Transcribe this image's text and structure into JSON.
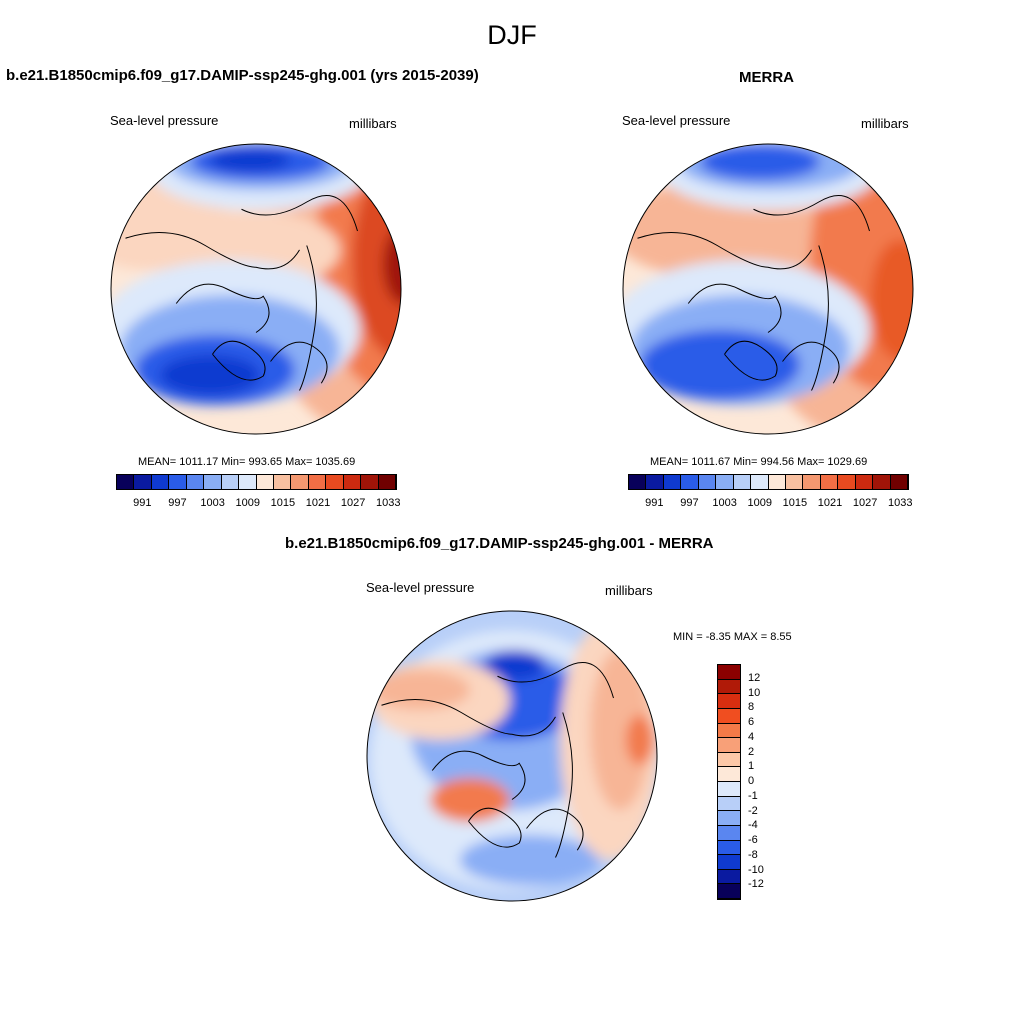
{
  "page_title": "DJF",
  "panels": [
    {
      "title": "b.e21.B1850cmip6.f09_g17.DAMIP-ssp245-ghg.001 (yrs 2015-2039)",
      "variable_label": "Sea-level pressure",
      "units_label": "millibars",
      "stats_text": "MEAN= 1011.17  Min= 993.65  Max= 1035.69"
    },
    {
      "title": "MERRA",
      "variable_label": "Sea-level pressure",
      "units_label": "millibars",
      "stats_text": "MEAN= 1011.67  Min= 994.56  Max= 1029.69"
    },
    {
      "title": "b.e21.B1850cmip6.f09_g17.DAMIP-ssp245-ghg.001 - MERRA",
      "variable_label": "Sea-level pressure",
      "units_label": "millibars",
      "stats_text": "MIN =  -8.35 MAX =   8.55"
    }
  ],
  "colorbar_abs": {
    "colors": [
      "#08005a",
      "#0a1aa0",
      "#0f3ad0",
      "#2a5ce8",
      "#5a86f0",
      "#8aaef5",
      "#b8cff8",
      "#dde9fb",
      "#fde8d8",
      "#f8c0a0",
      "#f49870",
      "#f26e45",
      "#e84a20",
      "#cc2a10",
      "#a01408",
      "#700000"
    ],
    "tick_labels": [
      "991",
      "997",
      "1003",
      "1009",
      "1015",
      "1021",
      "1027",
      "1033"
    ]
  },
  "colorbar_diff": {
    "colors": [
      "#8b0000",
      "#b01a08",
      "#d82e10",
      "#f04e20",
      "#f47a48",
      "#f8a078",
      "#fcc8a8",
      "#fde8d8",
      "#dde9fb",
      "#b8cff8",
      "#8aaef5",
      "#5a86f0",
      "#2a5ce8",
      "#0f3ad0",
      "#0a1aa0",
      "#08005a"
    ],
    "tick_labels": [
      "12",
      "10",
      "8",
      "6",
      "4",
      "2",
      "1",
      "0",
      "-1",
      "-2",
      "-4",
      "-6",
      "-8",
      "-10",
      "-12"
    ]
  },
  "map_fields": {
    "panel1": [
      {
        "c": "#f7b596",
        "blobs": [
          [
            380,
            250,
            130,
            190
          ]
        ]
      },
      {
        "c": "#f27a4e",
        "blobs": [
          [
            395,
            255,
            80,
            140
          ]
        ]
      },
      {
        "c": "#dc4a24",
        "blobs": [
          [
            402,
            260,
            50,
            100
          ]
        ]
      },
      {
        "c": "#a01408",
        "blobs": [
          [
            405,
            265,
            22,
            40
          ]
        ]
      },
      {
        "c": "#fbd6c0",
        "blobs": [
          [
            150,
            220,
            80,
            50
          ],
          [
            250,
            250,
            90,
            40
          ]
        ]
      },
      {
        "c": "#dde9fb",
        "blobs": [
          [
            260,
            170,
            110,
            40
          ],
          [
            230,
            330,
            130,
            70
          ]
        ]
      },
      {
        "c": "#8aaef5",
        "blobs": [
          [
            260,
            165,
            90,
            25
          ],
          [
            230,
            350,
            110,
            55
          ]
        ]
      },
      {
        "c": "#2a5ce8",
        "blobs": [
          [
            260,
            162,
            70,
            18
          ],
          [
            215,
            370,
            80,
            35
          ]
        ]
      },
      {
        "c": "#0f3ad0",
        "blobs": [
          [
            250,
            160,
            40,
            12
          ],
          [
            210,
            375,
            50,
            20
          ]
        ]
      }
    ],
    "panel2": [
      {
        "c": "#f7b596",
        "blobs": [
          [
            860,
            250,
            120,
            190
          ],
          [
            730,
            230,
            120,
            50
          ]
        ]
      },
      {
        "c": "#f27a4e",
        "blobs": [
          [
            880,
            260,
            70,
            130
          ]
        ]
      },
      {
        "c": "#e85a28",
        "blobs": [
          [
            900,
            300,
            30,
            60
          ]
        ]
      },
      {
        "c": "#dde9fb",
        "blobs": [
          [
            770,
            170,
            110,
            40
          ],
          [
            740,
            330,
            130,
            70
          ]
        ]
      },
      {
        "c": "#8aaef5",
        "blobs": [
          [
            770,
            165,
            90,
            25
          ],
          [
            740,
            350,
            110,
            55
          ]
        ]
      },
      {
        "c": "#2a5ce8",
        "blobs": [
          [
            760,
            162,
            60,
            18
          ],
          [
            720,
            365,
            80,
            35
          ]
        ]
      }
    ],
    "panel3": [
      {
        "c": "#dde9fb",
        "blobs": [
          [
            510,
            760,
            140,
            130
          ]
        ]
      },
      {
        "c": "#8aaef5",
        "blobs": [
          [
            510,
            730,
            100,
            80
          ],
          [
            530,
            860,
            70,
            25
          ]
        ]
      },
      {
        "c": "#2a5ce8",
        "blobs": [
          [
            510,
            700,
            70,
            40
          ]
        ]
      },
      {
        "c": "#0f3ad0",
        "blobs": [
          [
            515,
            665,
            30,
            15
          ]
        ]
      },
      {
        "c": "#fbd6c0",
        "blobs": [
          [
            440,
            700,
            70,
            40
          ],
          [
            610,
            740,
            50,
            120
          ]
        ]
      },
      {
        "c": "#f7b596",
        "blobs": [
          [
            420,
            690,
            50,
            20
          ],
          [
            620,
            730,
            30,
            80
          ]
        ]
      },
      {
        "c": "#f27a4e",
        "blobs": [
          [
            470,
            800,
            40,
            22
          ],
          [
            640,
            740,
            14,
            25
          ]
        ]
      }
    ]
  }
}
